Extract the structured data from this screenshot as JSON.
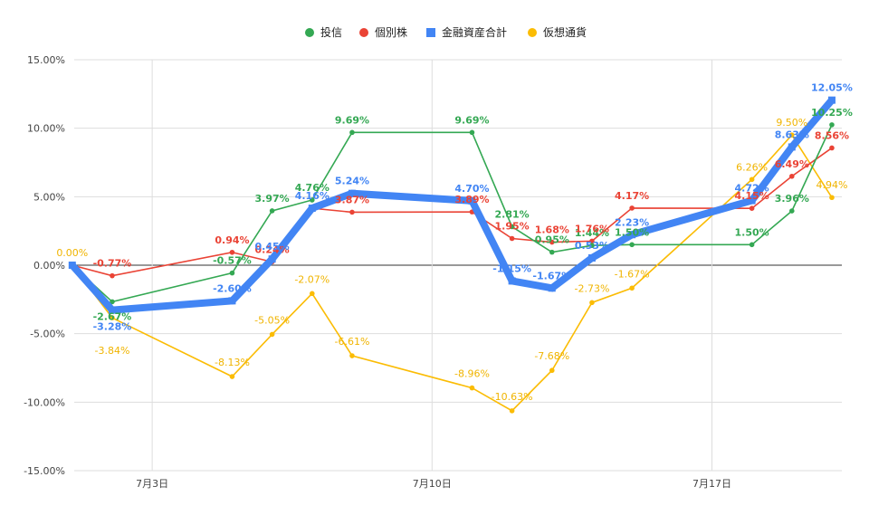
{
  "chart_data": {
    "type": "line",
    "legend_position": "top",
    "grid": true,
    "x_axis": {
      "type": "date",
      "min": "2024-07-01",
      "max": "2024-07-19",
      "ticks": [
        "2024-07-03",
        "2024-07-10",
        "2024-07-17"
      ],
      "tick_labels": [
        "7月3日",
        "7月10日",
        "7月17日"
      ]
    },
    "y_axis": {
      "min": -15,
      "max": 15,
      "step": 5,
      "format": "percent",
      "tick_labels": [
        "15.00%",
        "10.00%",
        "5.00%",
        "0.00%",
        "-5.00%",
        "-10.00%",
        "-15.00%"
      ]
    },
    "series": [
      {
        "name": "投信",
        "color": "#34a853",
        "marker": "circle",
        "points": [
          {
            "x": "2024-07-01",
            "y": 0.0,
            "label": ""
          },
          {
            "x": "2024-07-02",
            "y": -2.67,
            "label": "-2.67%"
          },
          {
            "x": "2024-07-05",
            "y": -0.57,
            "label": "-0.57%"
          },
          {
            "x": "2024-07-06",
            "y": 3.97,
            "label": "3.97%"
          },
          {
            "x": "2024-07-07",
            "y": 4.76,
            "label": "4.76%"
          },
          {
            "x": "2024-07-08",
            "y": 9.69,
            "label": "9.69%"
          },
          {
            "x": "2024-07-11",
            "y": 9.69,
            "label": "9.69%"
          },
          {
            "x": "2024-07-12",
            "y": 2.81,
            "label": "2.81%"
          },
          {
            "x": "2024-07-13",
            "y": 0.95,
            "label": "0.95%"
          },
          {
            "x": "2024-07-14",
            "y": 1.44,
            "label": "1.44%"
          },
          {
            "x": "2024-07-15",
            "y": 1.5,
            "label": "1.50%"
          },
          {
            "x": "2024-07-18",
            "y": 1.5,
            "label": "1.50%"
          },
          {
            "x": "2024-07-19",
            "y": 3.96,
            "label": "3.96%"
          },
          {
            "x": "2024-07-20",
            "y": 10.25,
            "label": "10.25%"
          }
        ]
      },
      {
        "name": "個別株",
        "color": "#ea4335",
        "marker": "circle",
        "points": [
          {
            "x": "2024-07-01",
            "y": 0.0,
            "label": ""
          },
          {
            "x": "2024-07-02",
            "y": -0.77,
            "label": "-0.77%"
          },
          {
            "x": "2024-07-05",
            "y": 0.94,
            "label": "0.94%"
          },
          {
            "x": "2024-07-06",
            "y": 0.24,
            "label": "0.24%"
          },
          {
            "x": "2024-07-07",
            "y": 4.16,
            "label": ""
          },
          {
            "x": "2024-07-08",
            "y": 3.87,
            "label": "3.87%"
          },
          {
            "x": "2024-07-11",
            "y": 3.89,
            "label": "3.89%"
          },
          {
            "x": "2024-07-12",
            "y": 1.95,
            "label": "1.95%"
          },
          {
            "x": "2024-07-13",
            "y": 1.68,
            "label": "1.68%"
          },
          {
            "x": "2024-07-14",
            "y": 1.76,
            "label": "1.76%"
          },
          {
            "x": "2024-07-15",
            "y": 4.17,
            "label": "4.17%"
          },
          {
            "x": "2024-07-18",
            "y": 4.15,
            "label": "4.15%"
          },
          {
            "x": "2024-07-19",
            "y": 6.49,
            "label": "6.49%"
          },
          {
            "x": "2024-07-20",
            "y": 8.56,
            "label": "8.56%"
          }
        ]
      },
      {
        "name": "金融資産合計",
        "color": "#4285f4",
        "marker": "square",
        "points": [
          {
            "x": "2024-07-01",
            "y": 0.0,
            "label": ""
          },
          {
            "x": "2024-07-02",
            "y": -3.28,
            "label": "-3.28%"
          },
          {
            "x": "2024-07-05",
            "y": -2.6,
            "label": "-2.60%"
          },
          {
            "x": "2024-07-06",
            "y": 0.45,
            "label": "0.45%"
          },
          {
            "x": "2024-07-07",
            "y": 4.16,
            "label": "4.16%"
          },
          {
            "x": "2024-07-08",
            "y": 5.24,
            "label": "5.24%"
          },
          {
            "x": "2024-07-11",
            "y": 4.7,
            "label": "4.70%"
          },
          {
            "x": "2024-07-12",
            "y": -1.15,
            "label": "-1.15%"
          },
          {
            "x": "2024-07-13",
            "y": -1.67,
            "label": "-1.67%"
          },
          {
            "x": "2024-07-14",
            "y": 0.53,
            "label": "0.53%"
          },
          {
            "x": "2024-07-15",
            "y": 2.23,
            "label": "2.23%"
          },
          {
            "x": "2024-07-18",
            "y": 4.72,
            "label": "4.72%"
          },
          {
            "x": "2024-07-19",
            "y": 8.63,
            "label": "8.63%"
          },
          {
            "x": "2024-07-20",
            "y": 12.05,
            "label": "12.05%"
          }
        ]
      },
      {
        "name": "仮想通貨",
        "color": "#fbbc04",
        "marker": "circle",
        "points": [
          {
            "x": "2024-07-01",
            "y": 0.0,
            "label": "0.00%"
          },
          {
            "x": "2024-07-02",
            "y": -3.84,
            "label": "-3.84%"
          },
          {
            "x": "2024-07-05",
            "y": -8.13,
            "label": "-8.13%"
          },
          {
            "x": "2024-07-06",
            "y": -5.05,
            "label": "-5.05%"
          },
          {
            "x": "2024-07-07",
            "y": -2.07,
            "label": "-2.07%"
          },
          {
            "x": "2024-07-08",
            "y": -6.61,
            "label": "-6.61%"
          },
          {
            "x": "2024-07-11",
            "y": -8.96,
            "label": "-8.96%"
          },
          {
            "x": "2024-07-12",
            "y": -10.63,
            "label": "-10.63%"
          },
          {
            "x": "2024-07-13",
            "y": -7.68,
            "label": "-7.68%"
          },
          {
            "x": "2024-07-14",
            "y": -2.73,
            "label": "-2.73%"
          },
          {
            "x": "2024-07-15",
            "y": -1.67,
            "label": "-1.67%"
          },
          {
            "x": "2024-07-18",
            "y": 6.26,
            "label": "6.26%"
          },
          {
            "x": "2024-07-19",
            "y": 9.5,
            "label": "9.50%"
          },
          {
            "x": "2024-07-20",
            "y": 4.94,
            "label": "4.94%"
          }
        ]
      }
    ]
  }
}
